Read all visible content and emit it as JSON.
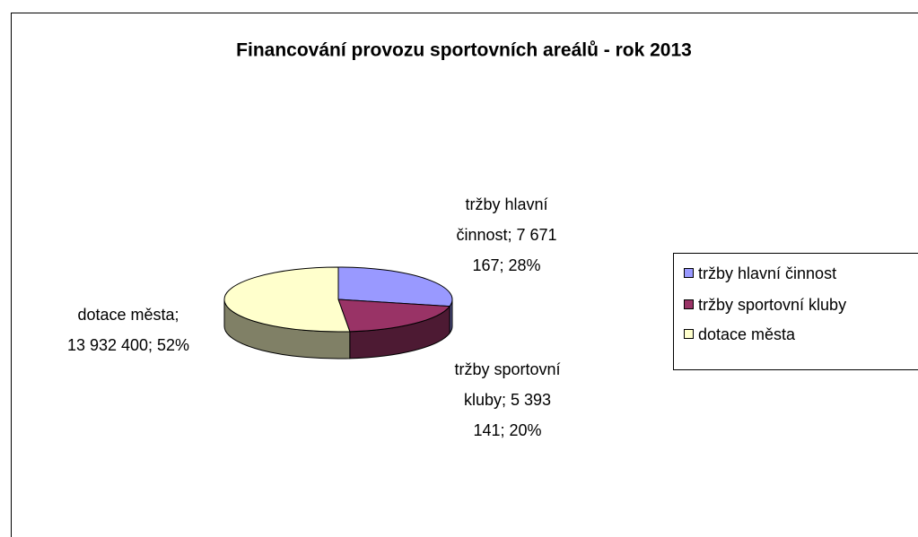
{
  "chart_data": {
    "type": "pie",
    "title": "Financování provozu sportovních areálů - rok 2013",
    "categories": [
      "tržby hlavní činnost",
      "tržby sportovní kluby",
      "dotace města"
    ],
    "values": [
      7671167,
      5393141,
      13932400
    ],
    "value_labels": [
      "tržby hlavní činnost; 7 671 167; 28%",
      "tržby sportovní kluby; 5 393 141; 20%",
      "dotace města; 13 932 400; 52%"
    ],
    "colors": [
      "#9999ff",
      "#993366",
      "#ffffcc"
    ],
    "legend": "right"
  }
}
